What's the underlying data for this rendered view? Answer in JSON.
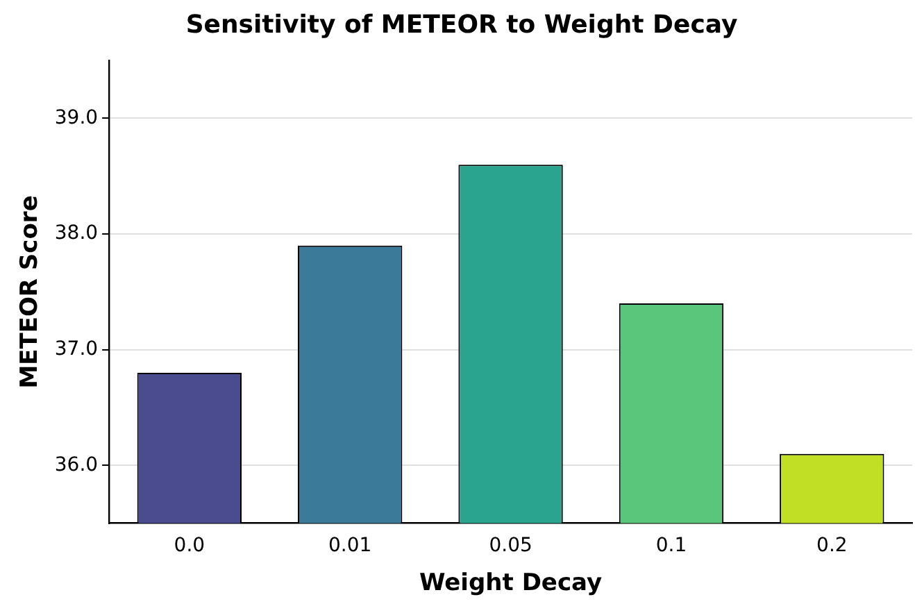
{
  "chart_data": {
    "type": "bar",
    "title": "Sensitivity of METEOR to Weight Decay",
    "xlabel": "Weight Decay",
    "ylabel": "METEOR Score",
    "categories": [
      "0.0",
      "0.01",
      "0.05",
      "0.1",
      "0.2"
    ],
    "values": [
      36.8,
      37.9,
      38.6,
      37.4,
      36.1
    ],
    "colors": [
      "#4b4b8f",
      "#3b7a99",
      "#2aa38f",
      "#5ac67b",
      "#c0df25"
    ],
    "ylim": [
      35.5,
      39.5
    ],
    "yticks": [
      {
        "value": 36,
        "label": "36.0"
      },
      {
        "value": 37,
        "label": "37.0"
      },
      {
        "value": 38,
        "label": "38.0"
      },
      {
        "value": 39,
        "label": "39.0"
      }
    ],
    "grid": "y"
  }
}
